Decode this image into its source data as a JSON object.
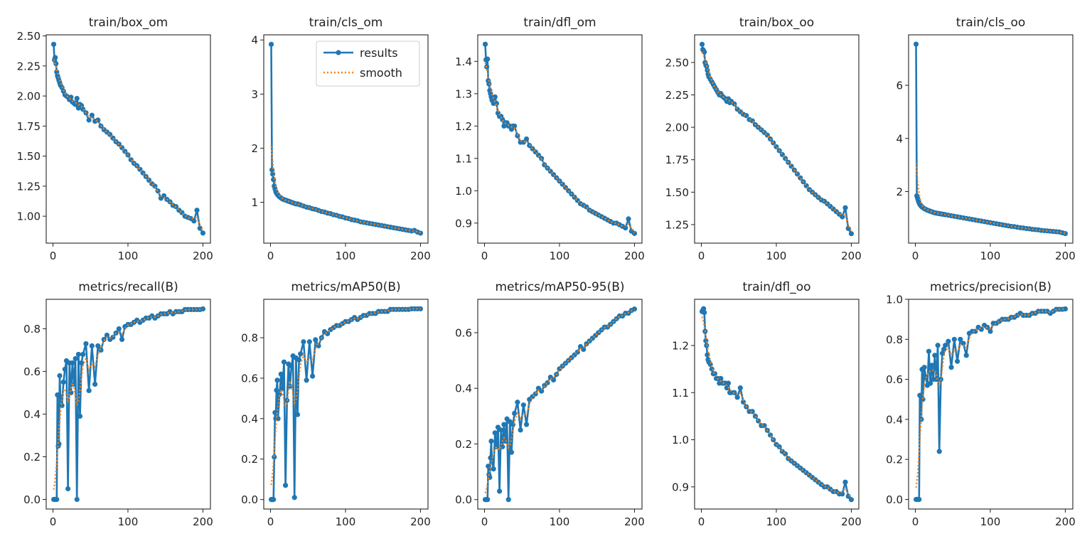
{
  "colors": {
    "results": "#1f77b4",
    "smooth": "#ff7f0e",
    "axes": "#222222"
  },
  "legend": {
    "placement": "top-right",
    "in_panel": 1,
    "entries": [
      "results",
      "smooth"
    ]
  },
  "chart_data": {
    "type": "line",
    "layout": "2 rows x 5 columns",
    "x": [
      1,
      2,
      3,
      4,
      5,
      6,
      7,
      8,
      9,
      10,
      12,
      14,
      16,
      18,
      20,
      22,
      24,
      26,
      28,
      30,
      32,
      34,
      36,
      38,
      40,
      44,
      48,
      52,
      56,
      60,
      64,
      68,
      72,
      76,
      80,
      84,
      88,
      92,
      96,
      100,
      104,
      108,
      112,
      116,
      120,
      124,
      128,
      132,
      136,
      140,
      144,
      148,
      152,
      156,
      160,
      164,
      168,
      172,
      176,
      180,
      184,
      188,
      192,
      196,
      200
    ],
    "xlim": [
      -9,
      210
    ],
    "xticks": [
      "0",
      "100",
      "200"
    ],
    "grid": false,
    "panels": [
      {
        "title": "train/box_om",
        "ylim": [
          0.776,
          2.509
        ],
        "yticks": [
          "1.00",
          "1.25",
          "1.50",
          "1.75",
          "2.00",
          "2.25",
          "2.50"
        ],
        "series": [
          {
            "name": "results",
            "values": [
              2.43,
              2.3,
              2.32,
              2.27,
              2.2,
              2.17,
              2.15,
              2.13,
              2.11,
              2.09,
              2.07,
              2.04,
              2.01,
              2.0,
              1.99,
              1.97,
              1.99,
              1.95,
              1.94,
              1.93,
              1.98,
              1.9,
              1.93,
              1.92,
              1.89,
              1.86,
              1.8,
              1.84,
              1.79,
              1.8,
              1.75,
              1.72,
              1.7,
              1.68,
              1.65,
              1.62,
              1.6,
              1.57,
              1.54,
              1.51,
              1.47,
              1.44,
              1.42,
              1.39,
              1.36,
              1.33,
              1.3,
              1.27,
              1.25,
              1.21,
              1.15,
              1.17,
              1.14,
              1.12,
              1.09,
              1.08,
              1.05,
              1.03,
              1.0,
              0.99,
              0.98,
              0.96,
              1.05,
              0.9,
              0.86
            ]
          }
        ]
      },
      {
        "title": "train/cls_om",
        "ylim": [
          0.245,
          4.095
        ],
        "yticks": [
          "1",
          "2",
          "3",
          "4"
        ],
        "series": [
          {
            "name": "results",
            "values": [
              3.92,
              1.6,
              1.52,
              1.42,
              1.3,
              1.25,
              1.2,
              1.17,
              1.15,
              1.13,
              1.1,
              1.08,
              1.06,
              1.05,
              1.04,
              1.03,
              1.02,
              1.01,
              1.0,
              0.99,
              0.98,
              0.97,
              0.97,
              0.96,
              0.95,
              0.93,
              0.91,
              0.9,
              0.88,
              0.87,
              0.85,
              0.83,
              0.82,
              0.8,
              0.79,
              0.77,
              0.76,
              0.74,
              0.73,
              0.71,
              0.7,
              0.68,
              0.67,
              0.66,
              0.64,
              0.63,
              0.62,
              0.61,
              0.6,
              0.59,
              0.58,
              0.57,
              0.56,
              0.55,
              0.54,
              0.53,
              0.52,
              0.51,
              0.5,
              0.49,
              0.48,
              0.47,
              0.48,
              0.45,
              0.43
            ]
          }
        ]
      },
      {
        "title": "train/dfl_om",
        "ylim": [
          0.838,
          1.482
        ],
        "yticks": [
          "0.9",
          "1.0",
          "1.1",
          "1.2",
          "1.3",
          "1.4"
        ],
        "series": [
          {
            "name": "results",
            "values": [
              1.453,
              1.405,
              1.383,
              1.407,
              1.34,
              1.33,
              1.31,
              1.3,
              1.29,
              1.28,
              1.27,
              1.29,
              1.27,
              1.24,
              1.23,
              1.23,
              1.22,
              1.2,
              1.21,
              1.21,
              1.2,
              1.2,
              1.19,
              1.2,
              1.2,
              1.17,
              1.15,
              1.15,
              1.16,
              1.14,
              1.13,
              1.12,
              1.11,
              1.1,
              1.08,
              1.07,
              1.06,
              1.05,
              1.04,
              1.03,
              1.02,
              1.01,
              1.0,
              0.99,
              0.98,
              0.97,
              0.96,
              0.955,
              0.95,
              0.94,
              0.935,
              0.93,
              0.925,
              0.92,
              0.915,
              0.91,
              0.905,
              0.9,
              0.9,
              0.895,
              0.89,
              0.885,
              0.913,
              0.875,
              0.868
            ]
          }
        ]
      },
      {
        "title": "train/box_oo",
        "ylim": [
          1.107,
          2.713
        ],
        "yticks": [
          "1.25",
          "1.50",
          "1.75",
          "2.00",
          "2.25",
          "2.50"
        ],
        "series": [
          {
            "name": "results",
            "values": [
              2.64,
              2.6,
              2.59,
              2.58,
              2.5,
              2.48,
              2.47,
              2.44,
              2.41,
              2.39,
              2.37,
              2.35,
              2.33,
              2.31,
              2.29,
              2.27,
              2.25,
              2.26,
              2.24,
              2.23,
              2.22,
              2.2,
              2.22,
              2.19,
              2.2,
              2.18,
              2.14,
              2.12,
              2.1,
              2.09,
              2.06,
              2.05,
              2.02,
              2.0,
              1.98,
              1.96,
              1.94,
              1.91,
              1.88,
              1.85,
              1.82,
              1.79,
              1.76,
              1.73,
              1.7,
              1.67,
              1.64,
              1.61,
              1.58,
              1.55,
              1.52,
              1.5,
              1.48,
              1.46,
              1.44,
              1.43,
              1.41,
              1.39,
              1.37,
              1.35,
              1.33,
              1.31,
              1.38,
              1.22,
              1.18
            ]
          }
        ]
      },
      {
        "title": "train/cls_oo",
        "ylim": [
          0.06,
          7.9
        ],
        "yticks": [
          "2",
          "4",
          "6"
        ],
        "series": [
          {
            "name": "results",
            "values": [
              7.55,
              1.84,
              1.75,
              1.65,
              1.58,
              1.52,
              1.48,
              1.45,
              1.42,
              1.4,
              1.36,
              1.33,
              1.3,
              1.28,
              1.26,
              1.24,
              1.22,
              1.2,
              1.19,
              1.18,
              1.17,
              1.16,
              1.15,
              1.14,
              1.13,
              1.11,
              1.09,
              1.07,
              1.05,
              1.03,
              1.01,
              0.99,
              0.97,
              0.95,
              0.93,
              0.91,
              0.89,
              0.87,
              0.85,
              0.83,
              0.81,
              0.79,
              0.77,
              0.75,
              0.73,
              0.71,
              0.69,
              0.68,
              0.66,
              0.64,
              0.63,
              0.61,
              0.6,
              0.58,
              0.57,
              0.56,
              0.54,
              0.53,
              0.52,
              0.51,
              0.5,
              0.49,
              0.48,
              0.45,
              0.42
            ]
          }
        ]
      },
      {
        "title": "metrics/recall(B)",
        "ylim": [
          -0.045,
          0.938
        ],
        "yticks": [
          "0.0",
          "0.2",
          "0.4",
          "0.6",
          "0.8"
        ],
        "series": [
          {
            "name": "results",
            "values": [
              0,
              0,
              0,
              0,
              0,
              0.49,
              0.25,
              0.26,
              0.58,
              0.48,
              0.44,
              0.55,
              0.61,
              0.65,
              0.05,
              0.64,
              0.5,
              0.64,
              0.54,
              0.66,
              0.0,
              0.68,
              0.39,
              0.64,
              0.68,
              0.73,
              0.51,
              0.72,
              0.54,
              0.72,
              0.7,
              0.75,
              0.77,
              0.75,
              0.76,
              0.78,
              0.8,
              0.75,
              0.81,
              0.82,
              0.82,
              0.83,
              0.84,
              0.83,
              0.84,
              0.85,
              0.85,
              0.86,
              0.85,
              0.86,
              0.87,
              0.87,
              0.87,
              0.88,
              0.87,
              0.88,
              0.88,
              0.88,
              0.89,
              0.89,
              0.89,
              0.89,
              0.89,
              0.89,
              0.893
            ]
          }
        ]
      },
      {
        "title": "metrics/mAP50(B)",
        "ylim": [
          -0.047,
          0.99
        ],
        "yticks": [
          "0.0",
          "0.2",
          "0.4",
          "0.6",
          "0.8"
        ],
        "series": [
          {
            "name": "results",
            "values": [
              0,
              0,
              0,
              0,
              0.21,
              0.43,
              0.4,
              0.54,
              0.59,
              0.4,
              0.52,
              0.62,
              0.55,
              0.68,
              0.07,
              0.49,
              0.67,
              0.56,
              0.66,
              0.71,
              0.01,
              0.7,
              0.42,
              0.69,
              0.72,
              0.78,
              0.59,
              0.78,
              0.61,
              0.79,
              0.76,
              0.8,
              0.83,
              0.82,
              0.84,
              0.85,
              0.86,
              0.86,
              0.87,
              0.88,
              0.88,
              0.89,
              0.9,
              0.89,
              0.9,
              0.91,
              0.91,
              0.92,
              0.92,
              0.92,
              0.93,
              0.93,
              0.93,
              0.93,
              0.94,
              0.94,
              0.94,
              0.94,
              0.94,
              0.94,
              0.94,
              0.943,
              0.943,
              0.943,
              0.943
            ]
          }
        ]
      },
      {
        "title": "metrics/mAP50-95(B)",
        "ylim": [
          -0.034,
          0.72
        ],
        "yticks": [
          "0.0",
          "0.2",
          "0.4",
          "0.6"
        ],
        "series": [
          {
            "name": "results",
            "values": [
              0,
              0,
              0,
              0,
              0.12,
              0.09,
              0.08,
              0.15,
              0.21,
              0.14,
              0.11,
              0.24,
              0.19,
              0.26,
              0.03,
              0.25,
              0.19,
              0.27,
              0.21,
              0.29,
              0.0,
              0.28,
              0.17,
              0.27,
              0.31,
              0.35,
              0.25,
              0.34,
              0.27,
              0.36,
              0.37,
              0.38,
              0.4,
              0.39,
              0.41,
              0.42,
              0.44,
              0.43,
              0.45,
              0.47,
              0.48,
              0.49,
              0.5,
              0.51,
              0.52,
              0.53,
              0.55,
              0.54,
              0.56,
              0.57,
              0.58,
              0.59,
              0.6,
              0.61,
              0.62,
              0.62,
              0.63,
              0.64,
              0.65,
              0.66,
              0.66,
              0.67,
              0.67,
              0.68,
              0.685
            ]
          }
        ]
      },
      {
        "title": "train/dfl_oo",
        "ylim": [
          0.853,
          1.298
        ],
        "yticks": [
          "0.9",
          "1.0",
          "1.1",
          "1.2"
        ],
        "series": [
          {
            "name": "results",
            "values": [
              1.272,
              1.275,
              1.278,
              1.27,
              1.23,
              1.21,
              1.2,
              1.18,
              1.17,
              1.165,
              1.16,
              1.15,
              1.14,
              1.14,
              1.13,
              1.13,
              1.12,
              1.13,
              1.12,
              1.12,
              1.12,
              1.11,
              1.12,
              1.1,
              1.1,
              1.1,
              1.09,
              1.11,
              1.08,
              1.07,
              1.06,
              1.06,
              1.05,
              1.04,
              1.03,
              1.03,
              1.02,
              1.01,
              1.0,
              0.99,
              0.985,
              0.975,
              0.97,
              0.96,
              0.955,
              0.95,
              0.945,
              0.94,
              0.935,
              0.93,
              0.925,
              0.92,
              0.915,
              0.91,
              0.905,
              0.9,
              0.9,
              0.895,
              0.89,
              0.89,
              0.885,
              0.885,
              0.91,
              0.88,
              0.873
            ]
          }
        ]
      },
      {
        "title": "metrics/precision(B)",
        "ylim": [
          -0.048,
          1.0
        ],
        "yticks": [
          "0.0",
          "0.2",
          "0.4",
          "0.6",
          "0.8",
          "1.0"
        ],
        "series": [
          {
            "name": "results",
            "values": [
              0,
              0,
              0,
              0,
              0,
              0.52,
              0.52,
              0.4,
              0.65,
              0.5,
              0.66,
              0.61,
              0.57,
              0.74,
              0.58,
              0.67,
              0.6,
              0.72,
              0.6,
              0.77,
              0.24,
              0.6,
              0.73,
              0.75,
              0.77,
              0.79,
              0.66,
              0.8,
              0.69,
              0.8,
              0.78,
              0.72,
              0.83,
              0.84,
              0.84,
              0.86,
              0.85,
              0.87,
              0.86,
              0.84,
              0.88,
              0.88,
              0.89,
              0.9,
              0.9,
              0.9,
              0.91,
              0.91,
              0.92,
              0.93,
              0.92,
              0.92,
              0.92,
              0.93,
              0.93,
              0.94,
              0.94,
              0.94,
              0.94,
              0.93,
              0.94,
              0.95,
              0.95,
              0.95,
              0.952
            ]
          }
        ]
      }
    ]
  }
}
